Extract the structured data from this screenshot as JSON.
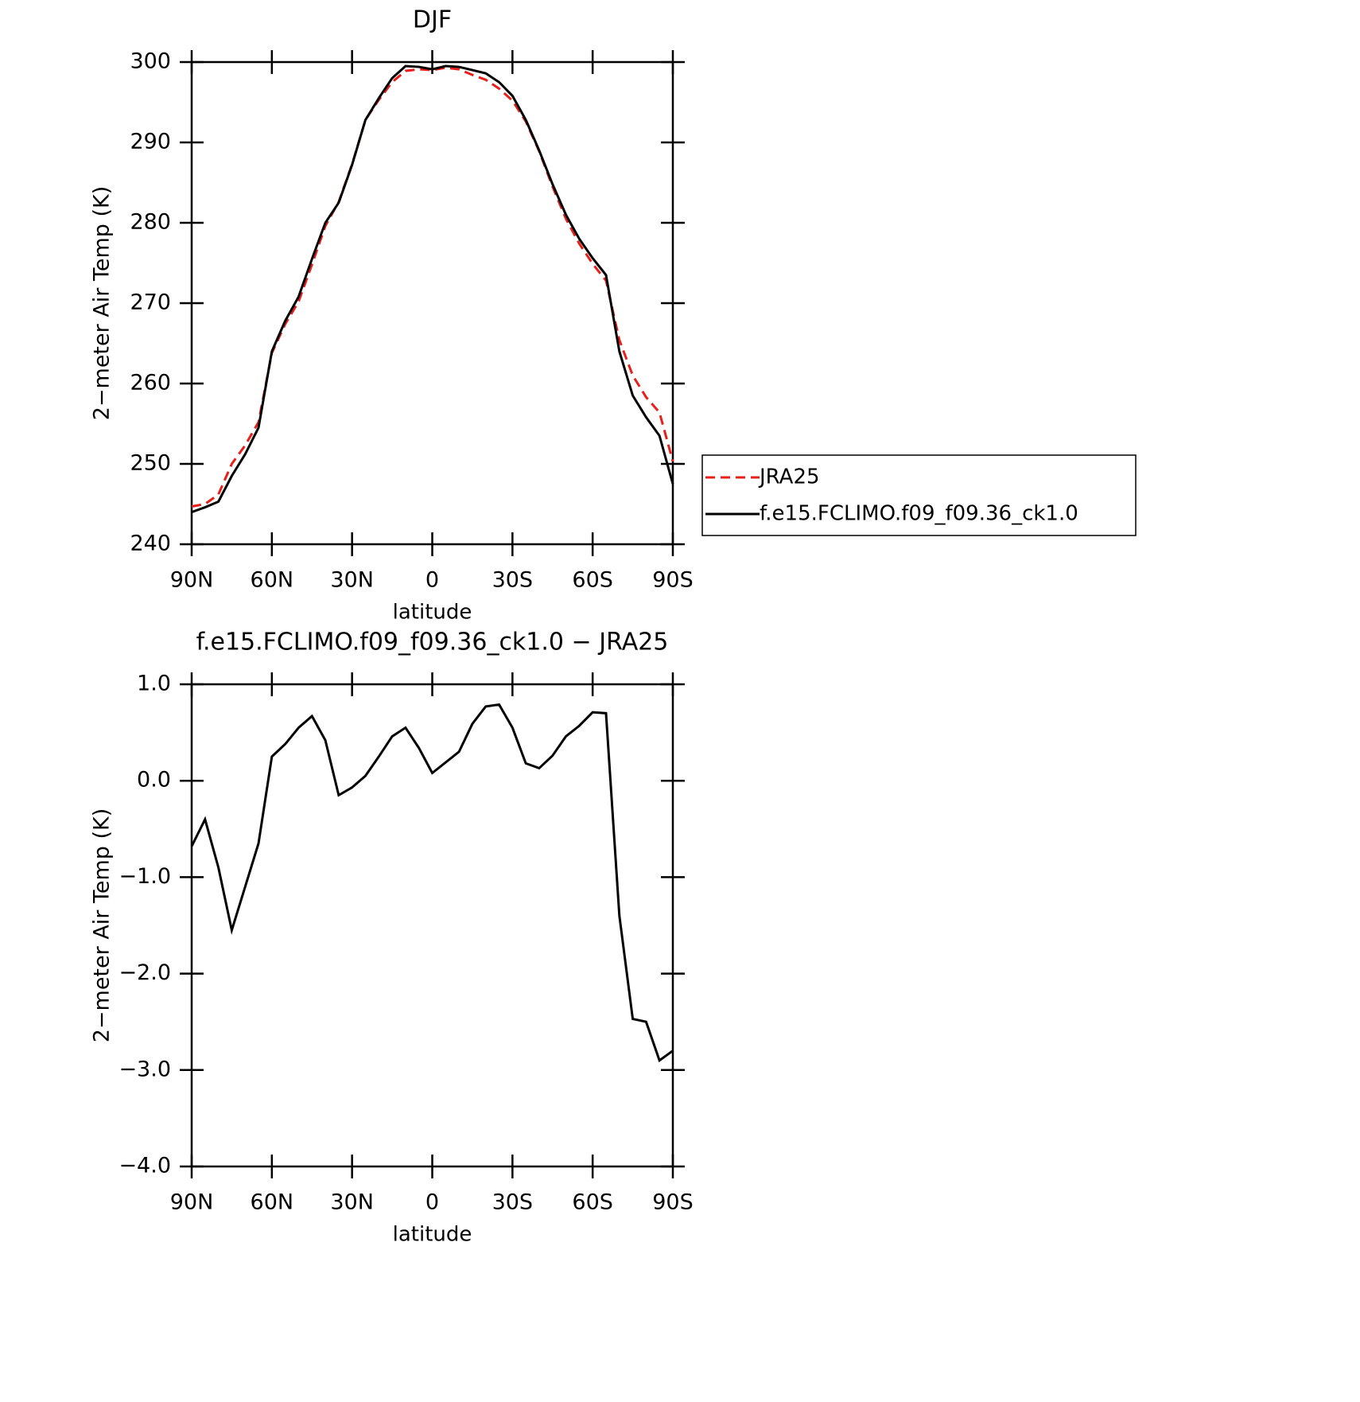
{
  "chart_data": [
    {
      "type": "line",
      "title": "DJF",
      "xlabel": "latitude",
      "ylabel": "2−meter Air Temp (K)",
      "xlim": [
        90,
        -90
      ],
      "ylim": [
        240,
        300
      ],
      "xticks": [
        {
          "value": 90,
          "label": "90N"
        },
        {
          "value": 60,
          "label": "60N"
        },
        {
          "value": 30,
          "label": "30N"
        },
        0,
        {
          "value": -30,
          "label": "30S"
        },
        {
          "value": -60,
          "label": "60S"
        },
        {
          "value": -90,
          "label": "90S"
        }
      ],
      "yticks": [
        240,
        250,
        260,
        270,
        280,
        290,
        300
      ],
      "legend": "right",
      "x": [
        90,
        85,
        80,
        75,
        70,
        65,
        60,
        55,
        50,
        45,
        40,
        35,
        30,
        25,
        20,
        15,
        10,
        5,
        0,
        -5,
        -10,
        -15,
        -20,
        -25,
        -30,
        -35,
        -40,
        -45,
        -50,
        -55,
        -60,
        -65,
        -70,
        -75,
        -80,
        -85,
        -90
      ],
      "series": [
        {
          "name": "JRA25",
          "color": "#e8201c",
          "linestyle": "dashed",
          "values": [
            244.7,
            245.0,
            246.2,
            250.0,
            252.3,
            255.2,
            263.8,
            267.4,
            270.2,
            274.8,
            279.6,
            282.6,
            287.3,
            292.8,
            295.3,
            297.5,
            298.9,
            299.1,
            299.0,
            299.3,
            299.1,
            298.4,
            297.8,
            296.7,
            295.2,
            292.6,
            288.9,
            284.5,
            280.5,
            277.4,
            274.9,
            272.8,
            265.4,
            261.0,
            258.3,
            256.4,
            250.3
          ]
        },
        {
          "name": "f.e15.FCLIMO.f09_f09.36_ck1.0",
          "color": "#000000",
          "linestyle": "solid",
          "values": [
            244.0,
            244.6,
            245.3,
            248.5,
            251.2,
            254.5,
            264.0,
            267.8,
            270.8,
            275.5,
            280.0,
            282.5,
            287.2,
            292.8,
            295.5,
            298.0,
            299.5,
            299.4,
            299.1,
            299.5,
            299.4,
            299.0,
            298.6,
            297.5,
            295.8,
            292.8,
            289.0,
            284.8,
            281.0,
            278.0,
            275.6,
            273.5,
            264.0,
            258.5,
            255.8,
            253.5,
            247.5
          ]
        }
      ]
    },
    {
      "type": "line",
      "title": "f.e15.FCLIMO.f09_f09.36_ck1.0 − JRA25",
      "xlabel": "latitude",
      "ylabel": "2−meter Air Temp (K)",
      "xlim": [
        90,
        -90
      ],
      "ylim": [
        -4,
        1
      ],
      "xticks": [
        {
          "value": 90,
          "label": "90N"
        },
        {
          "value": 60,
          "label": "60N"
        },
        {
          "value": 30,
          "label": "30N"
        },
        0,
        {
          "value": -30,
          "label": "30S"
        },
        {
          "value": -60,
          "label": "60S"
        },
        {
          "value": -90,
          "label": "90S"
        }
      ],
      "yticks": [
        {
          "value": -4,
          "label": "−4.0"
        },
        {
          "value": -3,
          "label": "−3.0"
        },
        {
          "value": -2,
          "label": "−2.0"
        },
        {
          "value": -1,
          "label": "−1.0"
        },
        {
          "value": 0,
          "label": "0.0"
        },
        {
          "value": 1,
          "label": "1.0"
        }
      ],
      "x": [
        90,
        85,
        80,
        75,
        70,
        65,
        60,
        55,
        50,
        45,
        40,
        35,
        30,
        25,
        20,
        15,
        10,
        5,
        0,
        -5,
        -10,
        -15,
        -20,
        -25,
        -30,
        -35,
        -40,
        -45,
        -50,
        -55,
        -60,
        -65,
        -70,
        -75,
        -80,
        -85,
        -90
      ],
      "series": [
        {
          "color": "#000000",
          "linestyle": "solid",
          "values": [
            -0.68,
            -0.4,
            -0.9,
            -1.55,
            -1.1,
            -0.65,
            0.25,
            0.38,
            0.55,
            0.67,
            0.42,
            -0.15,
            -0.07,
            0.05,
            0.25,
            0.46,
            0.55,
            0.34,
            0.08,
            0.19,
            0.3,
            0.59,
            0.77,
            0.79,
            0.55,
            0.18,
            0.13,
            0.26,
            0.46,
            0.57,
            0.71,
            0.7,
            -1.4,
            -2.47,
            -2.5,
            -2.9,
            -2.8
          ]
        }
      ]
    }
  ]
}
